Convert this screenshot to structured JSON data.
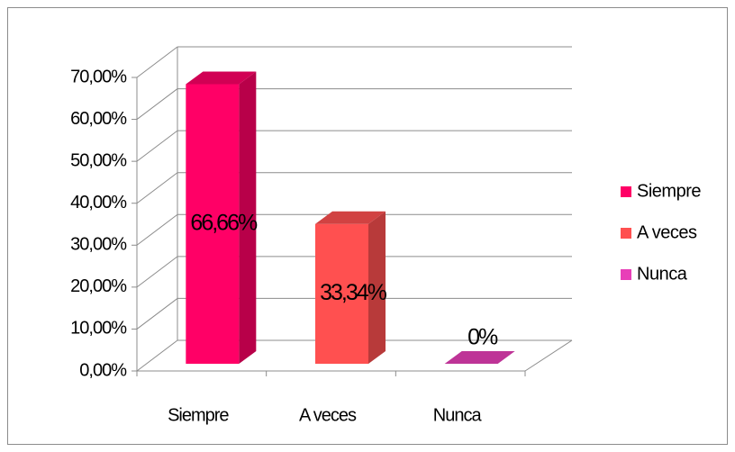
{
  "chart_data": {
    "type": "bar3d",
    "categories": [
      "Siempre",
      "A veces",
      "Nunca"
    ],
    "values": [
      66.66,
      33.34,
      0
    ],
    "value_labels": [
      "66,66%",
      "33,34%",
      "0%"
    ],
    "colors": [
      "#ff0066",
      "#ff5050",
      "#e83fb8"
    ],
    "ylim": [
      0,
      70
    ],
    "yticks": [
      {
        "value": 0,
        "label": "0,00%"
      },
      {
        "value": 10,
        "label": "10,00%"
      },
      {
        "value": 20,
        "label": "20,00%"
      },
      {
        "value": 30,
        "label": "30,00%"
      },
      {
        "value": 40,
        "label": "40,00%"
      },
      {
        "value": 50,
        "label": "50,00%"
      },
      {
        "value": 60,
        "label": "60,00%"
      },
      {
        "value": 70,
        "label": "70,00%"
      }
    ],
    "grid": true,
    "legend": "right"
  }
}
